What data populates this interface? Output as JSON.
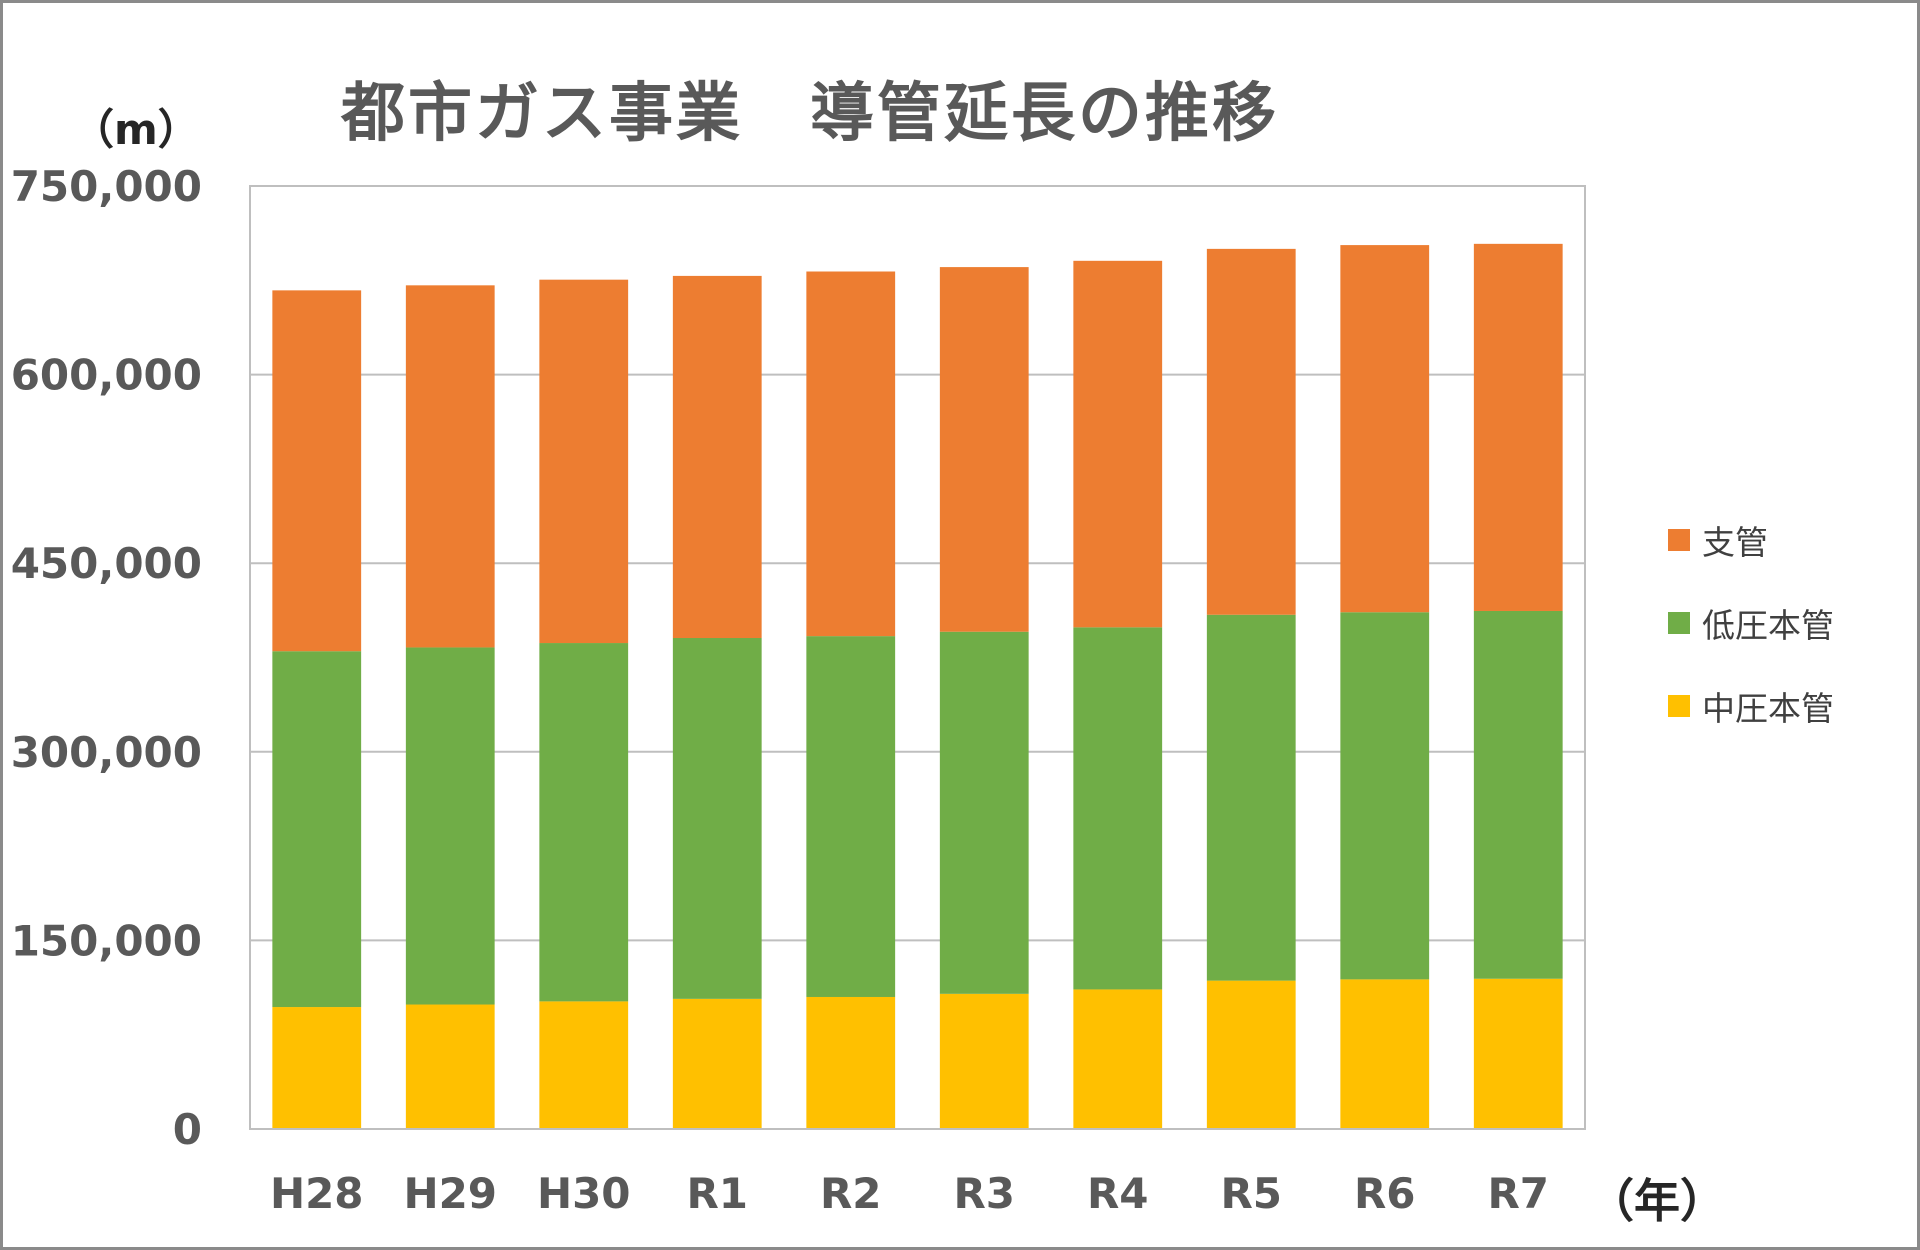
{
  "chart_data": {
    "type": "bar",
    "stacked": true,
    "title": "都市ガス事業　導管延長の推移",
    "ylabel": "（m）",
    "xlabel": "（年）",
    "categories": [
      "H28",
      "H29",
      "H30",
      "R1",
      "R2",
      "R3",
      "R4",
      "R5",
      "R6",
      "R7"
    ],
    "ylim": [
      0,
      750000
    ],
    "yticks": [
      0,
      150000,
      300000,
      450000,
      600000,
      750000
    ],
    "ytick_labels": [
      "0",
      "150,000",
      "300,000",
      "450,000",
      "600,000",
      "750,000"
    ],
    "grid": true,
    "legend_position": "right",
    "series": [
      {
        "name": "中圧本管",
        "color": "#FFC000",
        "values": [
          97000,
          99000,
          101500,
          103500,
          105000,
          107500,
          111000,
          118000,
          119000,
          119500
        ]
      },
      {
        "name": "低圧本管",
        "color": "#70AD47",
        "values": [
          283000,
          284000,
          285000,
          287000,
          287000,
          288000,
          288000,
          291000,
          292000,
          292500
        ]
      },
      {
        "name": "支管",
        "color": "#ED7D31",
        "values": [
          287000,
          288000,
          289000,
          288000,
          290000,
          290000,
          291500,
          291000,
          292000,
          292000
        ]
      }
    ],
    "legend_order": [
      "支管",
      "低圧本管",
      "中圧本管"
    ]
  }
}
